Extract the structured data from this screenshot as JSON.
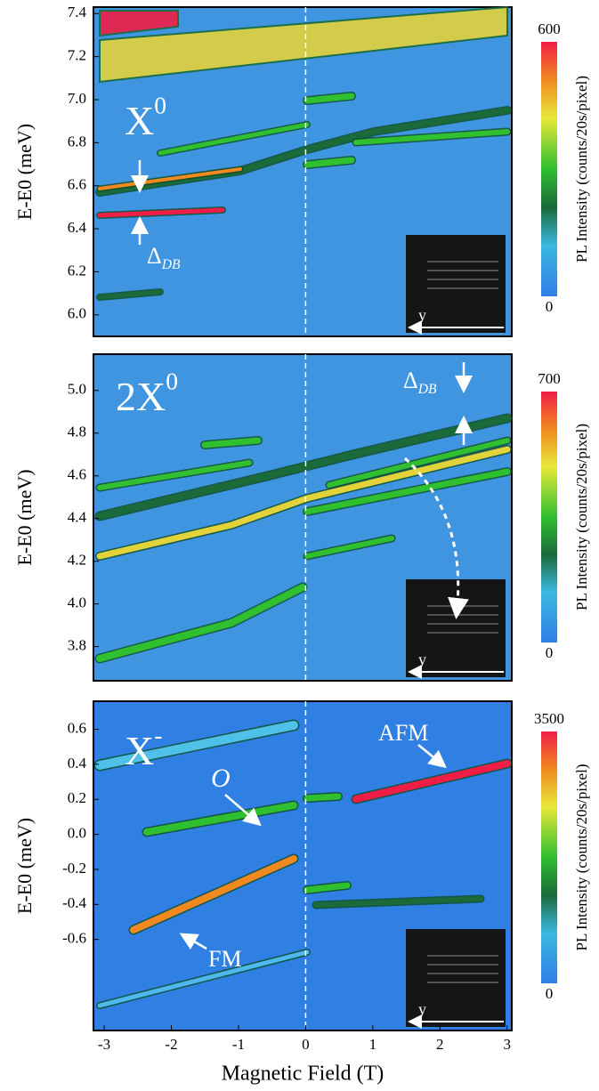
{
  "chart_data": [
    {
      "type": "heatmap",
      "ylabel": "E-E0 (meV)",
      "ylim": [
        5.9,
        7.43
      ],
      "yticks": [
        {
          "value": 6,
          "label": "6.0"
        },
        6.2,
        6.4,
        6.6,
        6.8,
        {
          "value": 7,
          "label": "7.0"
        },
        7.2,
        7.4
      ],
      "colorbar_label": "PL Intensity (counts/20s/pixel)",
      "clim": [
        0,
        600
      ],
      "cticks": [
        0,
        600
      ],
      "annotations": [
        {
          "text": "X",
          "sup": "0"
        },
        {
          "text": "Δ",
          "sub": "DB"
        }
      ],
      "inset_label": "y"
    },
    {
      "type": "heatmap",
      "ylabel": "E-E0 (meV)",
      "ylim": [
        3.64,
        5.17
      ],
      "yticks": [
        3.8,
        {
          "value": 4,
          "label": "4.0"
        },
        4.2,
        4.4,
        4.6,
        4.8,
        {
          "value": 5,
          "label": "5.0"
        }
      ],
      "colorbar_label": "PL Intensity (counts/20s/pixel)",
      "clim": [
        0,
        700
      ],
      "cticks": [
        0,
        700
      ],
      "annotations": [
        {
          "text": "2X",
          "sup": "0"
        },
        {
          "text": "Δ",
          "sub": "DB"
        }
      ],
      "inset_label": "y"
    },
    {
      "type": "heatmap",
      "ylabel": "E-E0 (meV)",
      "ylim": [
        -1.12,
        0.76
      ],
      "yticks": [
        -0.6,
        -0.4,
        -0.2,
        {
          "value": 0,
          "label": "0.0"
        },
        0.2,
        0.4,
        0.6
      ],
      "xlabel": "Magnetic Field (T)",
      "xlim": [
        -3.16,
        3.07
      ],
      "xticks": [
        -3,
        -2,
        -1,
        0,
        1,
        2,
        3
      ],
      "colorbar_label": "PL Intensity (counts/20s/pixel)",
      "clim": [
        0,
        3500
      ],
      "cticks": [
        0,
        3500
      ],
      "annotations": [
        {
          "text": "X",
          "sup": "-"
        },
        {
          "text": "O"
        },
        {
          "text": "AFM"
        },
        {
          "text": "FM"
        }
      ],
      "inset_label": "y"
    }
  ]
}
